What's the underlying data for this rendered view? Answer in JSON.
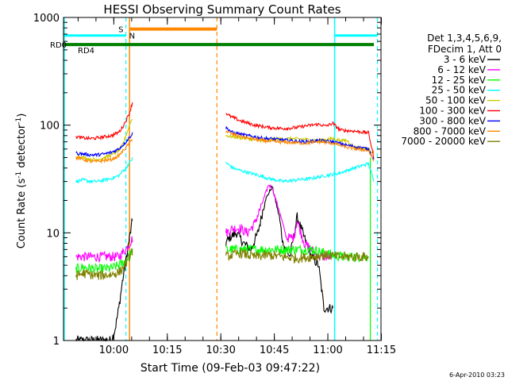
{
  "chart_data": {
    "type": "line",
    "title": "HESSI Observing Summary Count Rates",
    "xlabel": "Start Time (09-Feb-03 09:47:22)",
    "ylabel_main": "Count Rate (s",
    "ylabel_sup1": "-1",
    "ylabel_mid": " detector",
    "ylabel_sup2": "-1",
    "ylabel_end": ")",
    "yscale": "log",
    "ylim": [
      1,
      1000
    ],
    "xlim_minutes": [
      -1.5,
      87.5
    ],
    "x_unit": "minutes after 09:47:22",
    "x_ticks": [
      {
        "label": "10:00",
        "x": 12.6
      },
      {
        "label": "10:15",
        "x": 27.6
      },
      {
        "label": "10:30",
        "x": 42.6
      },
      {
        "label": "10:45",
        "x": 57.6
      },
      {
        "label": "11:00",
        "x": 72.6
      },
      {
        "label": "11:15",
        "x": 87.6
      }
    ],
    "y_ticks": [
      {
        "label": "1",
        "value": 1
      },
      {
        "label": "10",
        "value": 10
      },
      {
        "label": "100",
        "value": 100
      },
      {
        "label": "1000",
        "value": 1000
      }
    ],
    "legend_position": "right",
    "legend_header": [
      "Det 1,3,4,5,6,9,",
      "FDecim 1, Att 0"
    ],
    "series": [
      {
        "name": "3 - 6 keV",
        "color": "#000000",
        "x": [
          2,
          12,
          13,
          14,
          15,
          16,
          17,
          18,
          44,
          45,
          47,
          49,
          51,
          53,
          55,
          57,
          59,
          60,
          62,
          64,
          66,
          68,
          70,
          71.5,
          74
        ],
        "y": [
          1,
          1,
          1.3,
          2,
          3.5,
          5.5,
          9,
          14,
          8,
          9,
          10,
          8,
          7,
          10,
          20,
          27,
          14,
          8,
          6,
          14,
          9,
          6,
          5,
          2,
          2
        ]
      },
      {
        "name": "6 - 12 keV",
        "color": "#ff00ff",
        "x": [
          2,
          12,
          14,
          16,
          18,
          44,
          46,
          48,
          50,
          52,
          54,
          56,
          57,
          59,
          61,
          63,
          64,
          66,
          68,
          70,
          72,
          74
        ],
        "y": [
          6,
          6,
          6,
          7,
          9,
          10,
          11,
          11,
          10,
          12,
          18,
          28,
          26,
          16,
          9,
          9,
          13,
          8,
          7,
          6,
          6,
          6
        ]
      },
      {
        "name": "12 - 25 keV",
        "color": "#00ff00",
        "x": [
          2,
          4,
          8,
          12,
          14,
          16,
          18,
          44,
          48,
          52,
          56,
          60,
          64,
          68,
          72,
          76,
          78,
          80,
          82,
          84
        ],
        "y": [
          4.6,
          4.8,
          4.6,
          4.7,
          5,
          5.5,
          7,
          7,
          7,
          7,
          7,
          7,
          7,
          7,
          6.5,
          6,
          6,
          6,
          6,
          6
        ]
      },
      {
        "name": "25 - 50 keV",
        "color": "#00ffff",
        "x": [
          2,
          4,
          6,
          8,
          10,
          12,
          14,
          15,
          16,
          17,
          18,
          44,
          46,
          48,
          52,
          56,
          60,
          64,
          68,
          72,
          76,
          80,
          84,
          85.5
        ],
        "y": [
          30,
          31,
          30,
          30,
          31,
          32,
          34,
          37,
          40,
          45,
          50,
          45,
          40,
          38,
          35,
          32,
          30,
          31,
          32,
          34,
          36,
          40,
          44,
          30
        ]
      },
      {
        "name": "50 - 100 keV",
        "color": "#cccc00",
        "x": [
          2,
          4,
          6,
          8,
          10,
          12,
          14,
          15,
          16,
          17,
          18,
          44,
          46,
          50,
          54,
          58,
          62,
          66,
          70,
          74,
          76,
          78,
          80,
          84,
          85.5
        ],
        "y": [
          52,
          50,
          48,
          48,
          50,
          53,
          58,
          65,
          80,
          100,
          120,
          80,
          78,
          75,
          72,
          74,
          75,
          74,
          72,
          75,
          72,
          72,
          62,
          60,
          55
        ]
      },
      {
        "name": "100 - 300 keV",
        "color": "#ff0000",
        "x": [
          2,
          4,
          6,
          8,
          10,
          12,
          14,
          15,
          16,
          17,
          18,
          44,
          45,
          48,
          52,
          56,
          60,
          64,
          66,
          68,
          70,
          72,
          74,
          76,
          80,
          84,
          85.5
        ],
        "y": [
          78,
          76,
          75,
          76,
          78,
          80,
          86,
          95,
          110,
          130,
          170,
          130,
          122,
          110,
          100,
          95,
          93,
          95,
          98,
          100,
          102,
          98,
          104,
          90,
          88,
          85,
          50
        ]
      },
      {
        "name": "300 - 800 keV",
        "color": "#0000ff",
        "x": [
          2,
          4,
          6,
          8,
          10,
          12,
          14,
          16,
          18,
          44,
          46,
          50,
          54,
          58,
          62,
          66,
          70,
          74,
          78,
          84,
          85.5
        ],
        "y": [
          55,
          54,
          53,
          53,
          54,
          56,
          60,
          70,
          85,
          95,
          85,
          80,
          76,
          74,
          72,
          70,
          72,
          70,
          65,
          60,
          48
        ]
      },
      {
        "name": "800 - 7000 keV",
        "color": "#ff8800",
        "x": [
          2,
          4,
          6,
          8,
          10,
          12,
          14,
          16,
          18,
          44,
          46,
          50,
          54,
          58,
          62,
          66,
          70,
          74,
          78,
          84,
          85.5
        ],
        "y": [
          50,
          48,
          46,
          46,
          47,
          48,
          52,
          62,
          75,
          88,
          82,
          76,
          72,
          70,
          69,
          68,
          70,
          68,
          62,
          58,
          46
        ]
      },
      {
        "name": "7000 - 20000 keV",
        "color": "#808000",
        "x": [
          2,
          4,
          8,
          12,
          13,
          14,
          15,
          16,
          17,
          18,
          44,
          48,
          52,
          56,
          60,
          64,
          68,
          72,
          76,
          80,
          84
        ],
        "y": [
          4,
          4.2,
          4,
          4.1,
          4.2,
          4.3,
          4.6,
          5.2,
          6,
          7,
          6,
          6.5,
          6,
          6.2,
          6,
          5.8,
          6,
          6.2,
          6,
          6,
          6
        ]
      }
    ],
    "overlays": {
      "s_label": "S",
      "n_label": "N",
      "rd0_label": "RD0",
      "rd4_label": "RD4",
      "s_bar_start": 17,
      "s_bar_end": 41.5,
      "s_bar_level": 780,
      "s_color": "#ff8800",
      "n_bar_segments": [
        [
          -1.5,
          16
        ],
        [
          74.5,
          86.5
        ]
      ],
      "n_bar_level": 680,
      "n_color": "#00ffff",
      "rd_bar_start": -1.5,
      "rd_bar_end": 85.5,
      "rd_bar_level": 560,
      "rd_color": "#008000",
      "solid_cyan_lines": [
        -1.3,
        74.5
      ],
      "dashed_cyan_lines": [
        16,
        86.5
      ],
      "solid_orange_lines": [
        17
      ],
      "dashed_orange_lines": [
        41.5
      ],
      "green_drop_lines": [
        84.5
      ]
    }
  },
  "timestamp": "6-Apr-2010 03:23"
}
